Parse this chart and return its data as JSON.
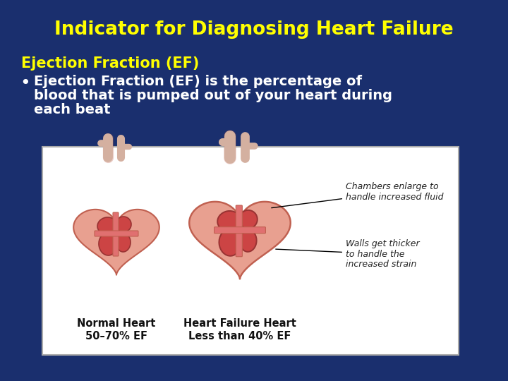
{
  "background_color": "#1a2f6e",
  "title_text": "Indicator for Diagnosing Heart Failure",
  "title_color": "#ffff00",
  "title_fontsize": 19,
  "title_bold": true,
  "subtitle_text": "Ejection Fraction (EF)",
  "subtitle_color": "#ffff00",
  "subtitle_fontsize": 15,
  "subtitle_bold": true,
  "bullet_line1": "Ejection Fraction (EF) is the percentage of",
  "bullet_line2": "blood that is pumped out of your heart during",
  "bullet_line3": "each beat",
  "bullet_color": "#ffffff",
  "bullet_fontsize": 14,
  "image_box_color": "#ffffff",
  "image_box_border": "#aaaaaa",
  "normal_heart_label1": "Normal Heart",
  "normal_heart_label2": "50–70% EF",
  "failure_heart_label1": "Heart Failure Heart",
  "failure_heart_label2": "Less than 40% EF",
  "annotation1": "Chambers enlarge to\nhandle increased fluid",
  "annotation2": "Walls get thicker\nto handle the\nincreased strain",
  "heart_outer_fill": "#e8a090",
  "heart_outer_edge": "#c06050",
  "heart_chamber_fill": "#cc4444",
  "heart_chamber_edge": "#993333",
  "heart_wall_fill": "#e07070",
  "vessel_color": "#d4b0a0",
  "label_color": "#111111",
  "annotation_color": "#222222"
}
